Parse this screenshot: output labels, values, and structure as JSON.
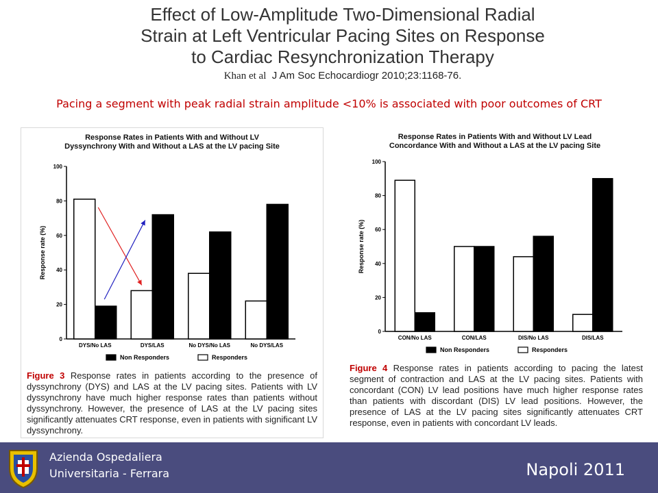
{
  "slide": {
    "title_lines": [
      "Effect of Low-Amplitude Two-Dimensional Radial",
      "Strain at Left Ventricular Pacing Sites on Response",
      "to Cardiac Resynchronization Therapy"
    ],
    "citation_author": "Khan et al",
    "citation_ref": "J Am Soc Echocardiogr 2010;23:1168-76.",
    "subtitle": "Pacing a segment with peak radial strain amplitude <10% is associated with poor outcomes of CRT"
  },
  "colors": {
    "accent": "#c00000",
    "footer": "#4a4c7e",
    "arrow_red": "#e02020",
    "arrow_blue": "#2020c0"
  },
  "chart_data": [
    {
      "type": "bar",
      "title_lines": [
        "Response Rates in Patients With and Without LV",
        "Dyssynchrony With and Without a LAS at the LV pacing Site"
      ],
      "categories": [
        "DYS/No LAS",
        "DYS/LAS",
        "No DYS/No LAS",
        "No DYS/LAS"
      ],
      "series": [
        {
          "name": "Responders",
          "color": "#ffffff",
          "values": [
            81,
            28,
            38,
            22
          ]
        },
        {
          "name": "Non Responders",
          "color": "#000000",
          "values": [
            19,
            72,
            62,
            78
          ]
        }
      ],
      "ylabel": "Response rate (%)",
      "ylim": [
        0,
        100
      ],
      "yticks": [
        "0",
        "20",
        "40",
        "60",
        "80",
        "100"
      ],
      "legend": [
        "Non Responders",
        "Responders"
      ],
      "legend_position": "bottom",
      "caption_fig": "Figure 3",
      "caption_text": "Response rates in patients according to the presence of dyssynchrony (DYS) and LAS at the LV pacing sites. Patients with LV dyssynchrony have much higher response rates than patients without dyssynchrony. However, the presence of LAS at the LV pacing sites significantly attenuates CRT response, even in patients with significant LV dyssynchrony."
    },
    {
      "type": "bar",
      "title_lines": [
        "Response Rates in Patients With and Without LV Lead",
        "Concordance With and Without a LAS at the LV pacing Site"
      ],
      "categories": [
        "CON/No LAS",
        "CON/LAS",
        "DIS/No LAS",
        "DIS/LAS"
      ],
      "series": [
        {
          "name": "Responders",
          "color": "#ffffff",
          "values": [
            89,
            50,
            44,
            10
          ]
        },
        {
          "name": "Non Responders",
          "color": "#000000",
          "values": [
            11,
            50,
            56,
            90
          ]
        }
      ],
      "ylabel": "Response rate (%)",
      "ylim": [
        0,
        100
      ],
      "yticks": [
        "0",
        "20",
        "40",
        "60",
        "80",
        "100"
      ],
      "legend": [
        "Non Responders",
        "Responders"
      ],
      "legend_position": "bottom",
      "caption_fig": "Figure 4",
      "caption_text": "Response rates in patients according to pacing the latest segment of contraction and LAS at the LV pacing sites. Patients with concordant (CON) LV lead positions have much higher response rates than patients with discordant (DIS) LV lead positions. However, the presence of LAS at the LV pacing sites significantly attenuates CRT response, even in patients with concordant LV leads."
    }
  ],
  "footer": {
    "org_line1": "Azienda Ospedaliera",
    "org_line2": "Universitaria - Ferrara",
    "place": "Napoli  2011",
    "logo_icon": "hospital-crest-icon"
  }
}
